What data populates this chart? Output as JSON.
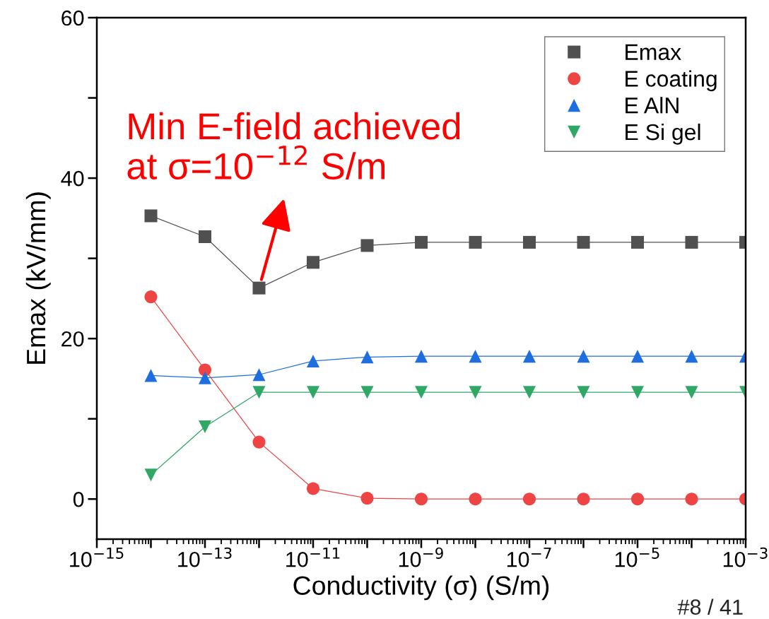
{
  "chart_data": {
    "type": "line",
    "xlabel": "Conductivity (σ) (S/m)",
    "ylabel": "Emax (kV/mm)",
    "x": [
      1e-14,
      1e-13,
      1e-12,
      1e-11,
      1e-10,
      1e-09,
      1e-08,
      1e-07,
      1e-06,
      1e-05,
      0.0001,
      0.001
    ],
    "log": "x",
    "xlim": [
      1e-15,
      0.001
    ],
    "xticks": [
      {
        "value": 1e-15,
        "label": "10$^{−15}$"
      },
      {
        "value": 1e-14,
        "label": null
      },
      {
        "value": 1e-13,
        "label": "10$^{−13}$"
      },
      {
        "value": 1e-12,
        "label": null
      },
      {
        "value": 1e-11,
        "label": "10$^{−11}$"
      },
      {
        "value": 1e-10,
        "label": null
      },
      {
        "value": 1e-09,
        "label": "10$^{−9}$"
      },
      {
        "value": 1e-08,
        "label": null
      },
      {
        "value": 1e-07,
        "label": "10$^{−7}$"
      },
      {
        "value": 1e-06,
        "label": null
      },
      {
        "value": 1e-05,
        "label": "10$^{−5}$"
      },
      {
        "value": 0.0001,
        "label": null
      },
      {
        "value": 0.001,
        "label": "10$^{−3}$"
      }
    ],
    "ylim": [
      -5,
      60
    ],
    "yticks": [
      0,
      {
        "value": 10,
        "label": null
      },
      20,
      {
        "value": 30,
        "label": null
      },
      40,
      {
        "value": 50,
        "label": null
      },
      60
    ],
    "grid": false,
    "legend": "top right",
    "series": [
      {
        "name": "Emax",
        "color": "#505050",
        "marker": "square",
        "values": [
          35.3,
          32.7,
          26.3,
          29.5,
          31.6,
          32.0,
          32.0,
          32.0,
          32.0,
          32.0,
          32.0,
          32.0
        ]
      },
      {
        "name": "E coating",
        "color": "#ee4444",
        "marker": "circle",
        "values": [
          25.2,
          16.1,
          7.1,
          1.3,
          0.1,
          0,
          0,
          0,
          0,
          0,
          0,
          0
        ]
      },
      {
        "name": "E AlN",
        "color": "#1f6ee0",
        "marker": "triangle",
        "values": [
          15.4,
          15.1,
          15.5,
          17.2,
          17.7,
          17.8,
          17.8,
          17.8,
          17.8,
          17.8,
          17.8,
          17.8
        ]
      },
      {
        "name": "E Si gel",
        "color": "#2fa866",
        "marker": "triangle-down",
        "values": [
          3.0,
          9.0,
          13.3,
          13.3,
          13.3,
          13.3,
          13.3,
          13.3,
          13.3,
          13.3,
          13.3,
          13.3
        ]
      }
    ],
    "annotations": [
      {
        "text": "Min E-field achieved\nat σ=10$^{−12}$ S/m",
        "x": 1e-12,
        "y": 26.3
      },
      "#8 / 41"
    ]
  }
}
